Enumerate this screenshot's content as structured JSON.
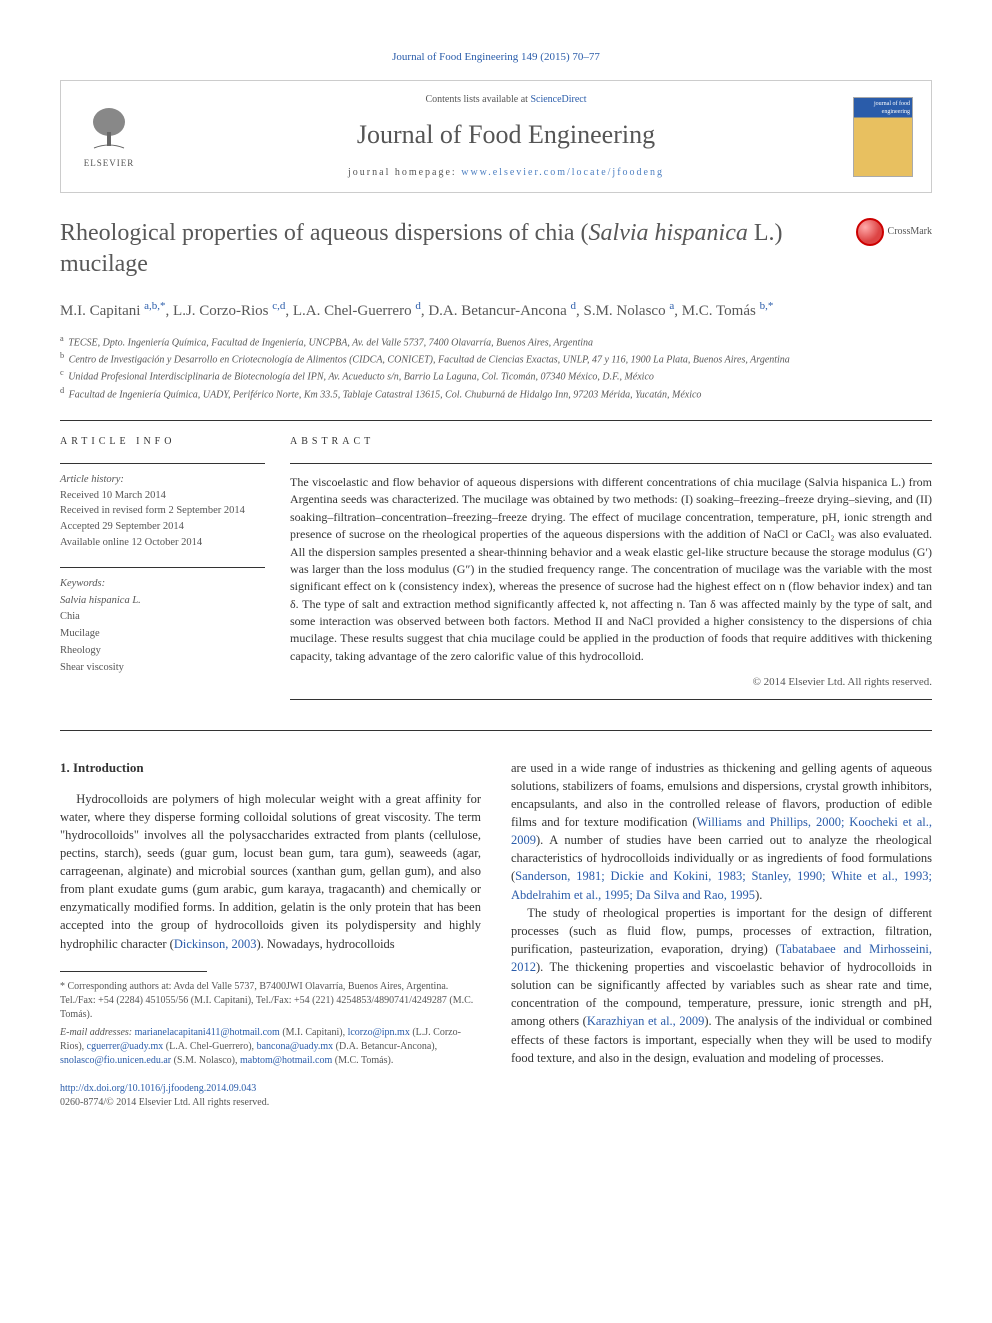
{
  "header": {
    "citation": "Journal of Food Engineering 149 (2015) 70–77",
    "contents_prefix": "Contents lists available at ",
    "contents_link": "ScienceDirect",
    "journal_name": "Journal of Food Engineering",
    "homepage_prefix": "journal homepage: ",
    "homepage_url": "www.elsevier.com/locate/jfoodeng",
    "elsevier_label": "ELSEVIER",
    "cover_text": "journal of food engineering"
  },
  "title": {
    "main": "Rheological properties of aqueous dispersions of chia (",
    "italic": "Salvia hispanica",
    "suffix": " L.) mucilage",
    "crossmark": "CrossMark"
  },
  "authors_html": "M.I. Capitani <a>a,b,*</a>, L.J. Corzo-Rios <a>c,d</a>, L.A. Chel-Guerrero <a>d</a>, D.A. Betancur-Ancona <a>d</a>, S.M. Nolasco <a>a</a>, M.C. Tomás <a>b,*</a>",
  "affiliations": [
    {
      "sup": "a",
      "text": "TECSE, Dpto. Ingeniería Química, Facultad de Ingeniería, UNCPBA, Av. del Valle 5737, 7400 Olavarría, Buenos Aires, Argentina"
    },
    {
      "sup": "b",
      "text": "Centro de Investigación y Desarrollo en Criotecnología de Alimentos (CIDCA, CONICET), Facultad de Ciencias Exactas, UNLP, 47 y 116, 1900 La Plata, Buenos Aires, Argentina"
    },
    {
      "sup": "c",
      "text": "Unidad Profesional Interdisciplinaria de Biotecnología del IPN, Av. Acueducto s/n, Barrio La Laguna, Col. Ticomán, 07340 México, D.F., México"
    },
    {
      "sup": "d",
      "text": "Facultad de Ingeniería Química, UADY, Periférico Norte, Km 33.5, Tablaje Catastral 13615, Col. Chuburná de Hidalgo Inn, 97203 Mérida, Yucatán, México"
    }
  ],
  "info_heading": "ARTICLE INFO",
  "abstract_heading": "ABSTRACT",
  "history": {
    "label": "Article history:",
    "received": "Received 10 March 2014",
    "revised": "Received in revised form 2 September 2014",
    "accepted": "Accepted 29 September 2014",
    "online": "Available online 12 October 2014"
  },
  "keywords": {
    "label": "Keywords:",
    "items": [
      "Salvia hispanica L.",
      "Chia",
      "Mucilage",
      "Rheology",
      "Shear viscosity"
    ]
  },
  "abstract_text": "The viscoelastic and flow behavior of aqueous dispersions with different concentrations of chia mucilage (Salvia hispanica L.) from Argentina seeds was characterized. The mucilage was obtained by two methods: (I) soaking–freezing–freeze drying–sieving, and (II) soaking–filtration–concentration–freezing–freeze drying. The effect of mucilage concentration, temperature, pH, ionic strength and presence of sucrose on the rheological properties of the aqueous dispersions with the addition of NaCl or CaCl₂ was also evaluated. All the dispersion samples presented a shear-thinning behavior and a weak elastic gel-like structure because the storage modulus (G′) was larger than the loss modulus (G″) in the studied frequency range. The concentration of mucilage was the variable with the most significant effect on k (consistency index), whereas the presence of sucrose had the highest effect on n (flow behavior index) and tan δ. The type of salt and extraction method significantly affected k, not affecting n. Tan δ was affected mainly by the type of salt, and some interaction was observed between both factors. Method II and NaCl provided a higher consistency to the dispersions of chia mucilage. These results suggest that chia mucilage could be applied in the production of foods that require additives with thickening capacity, taking advantage of the zero calorific value of this hydrocolloid.",
  "copyright": "© 2014 Elsevier Ltd. All rights reserved.",
  "section1": {
    "heading": "1. Introduction",
    "para1_a": "Hydrocolloids are polymers of high molecular weight with a great affinity for water, where they disperse forming colloidal solutions of great viscosity. The term \"hydrocolloids\" involves all the polysaccharides extracted from plants (cellulose, pectins, starch), seeds (guar gum, locust bean gum, tara gum), seaweeds (agar, carrageenan, alginate) and microbial sources (xanthan gum, gellan gum), and also from plant exudate gums (gum arabic, gum karaya, tragacanth) and chemically or enzymatically modified forms. In addition, gelatin is the only protein that has been accepted into the group of hydrocolloids given its polydispersity and highly hydrophilic character (",
    "para1_link1": "Dickinson, 2003",
    "para1_b": "). Nowadays, hydrocolloids ",
    "col2_a": "are used in a wide range of industries as thickening and gelling agents of aqueous solutions, stabilizers of foams, emulsions and dispersions, crystal growth inhibitors, encapsulants, and also in the controlled release of flavors, production of edible films and for texture modification (",
    "col2_link1": "Williams and Phillips, 2000; Koocheki et al., 2009",
    "col2_b": "). A number of studies have been carried out to analyze the rheological characteristics of hydrocolloids individually or as ingredients of food formulations (",
    "col2_link2": "Sanderson, 1981; Dickie and Kokini, 1983; Stanley, 1990; White et al., 1993; Abdelrahim et al., 1995; Da Silva and Rao, 1995",
    "col2_c": ").",
    "para2_a": "The study of rheological properties is important for the design of different processes (such as fluid flow, pumps, processes of extraction, filtration, purification, pasteurization, evaporation, drying) (",
    "para2_link1": "Tabatabaee and Mirhosseini, 2012",
    "para2_b": "). The thickening properties and viscoelastic behavior of hydrocolloids in solution can be significantly affected by variables such as shear rate and time, concentration of the compound, temperature, pressure, ionic strength and pH, among others (",
    "para2_link2": "Karazhiyan et al., 2009",
    "para2_c": "). The analysis of the individual or combined effects of these factors is important, especially when they will be used to modify food texture, and also in the design, evaluation and modeling of processes."
  },
  "footnotes": {
    "corr_label": "* Corresponding authors at: Avda del Valle 5737, B7400JWI Olavarría, Buenos Aires, Argentina. Tel./Fax: +54 (2284) 451055/56 (M.I. Capitani), Tel./Fax: +54 (221) 4254853/4890741/4249287 (M.C. Tomás).",
    "email_label": "E-mail addresses: ",
    "emails": [
      {
        "addr": "marianelacapitani411@hotmail.com",
        "who": " (M.I. Capitani), "
      },
      {
        "addr": "lcorzo@ipn.mx",
        "who": " (L.J. Corzo-Rios), "
      },
      {
        "addr": "cguerrer@uady.mx",
        "who": " (L.A. Chel-Guerrero), "
      },
      {
        "addr": "bancona@uady.mx",
        "who": " (D.A. Betancur-Ancona), "
      },
      {
        "addr": "snolasco@fio.unicen.edu.ar",
        "who": " (S.M. Nolasco), "
      },
      {
        "addr": "mabtom@hotmail.com",
        "who": " (M.C. Tomás)."
      }
    ]
  },
  "doi": {
    "url": "http://dx.doi.org/10.1016/j.jfoodeng.2014.09.043",
    "issn_line": "0260-8774/© 2014 Elsevier Ltd. All rights reserved."
  },
  "colors": {
    "link": "#2a5caa",
    "text": "#333333",
    "muted": "#585858",
    "background": "#ffffff"
  }
}
